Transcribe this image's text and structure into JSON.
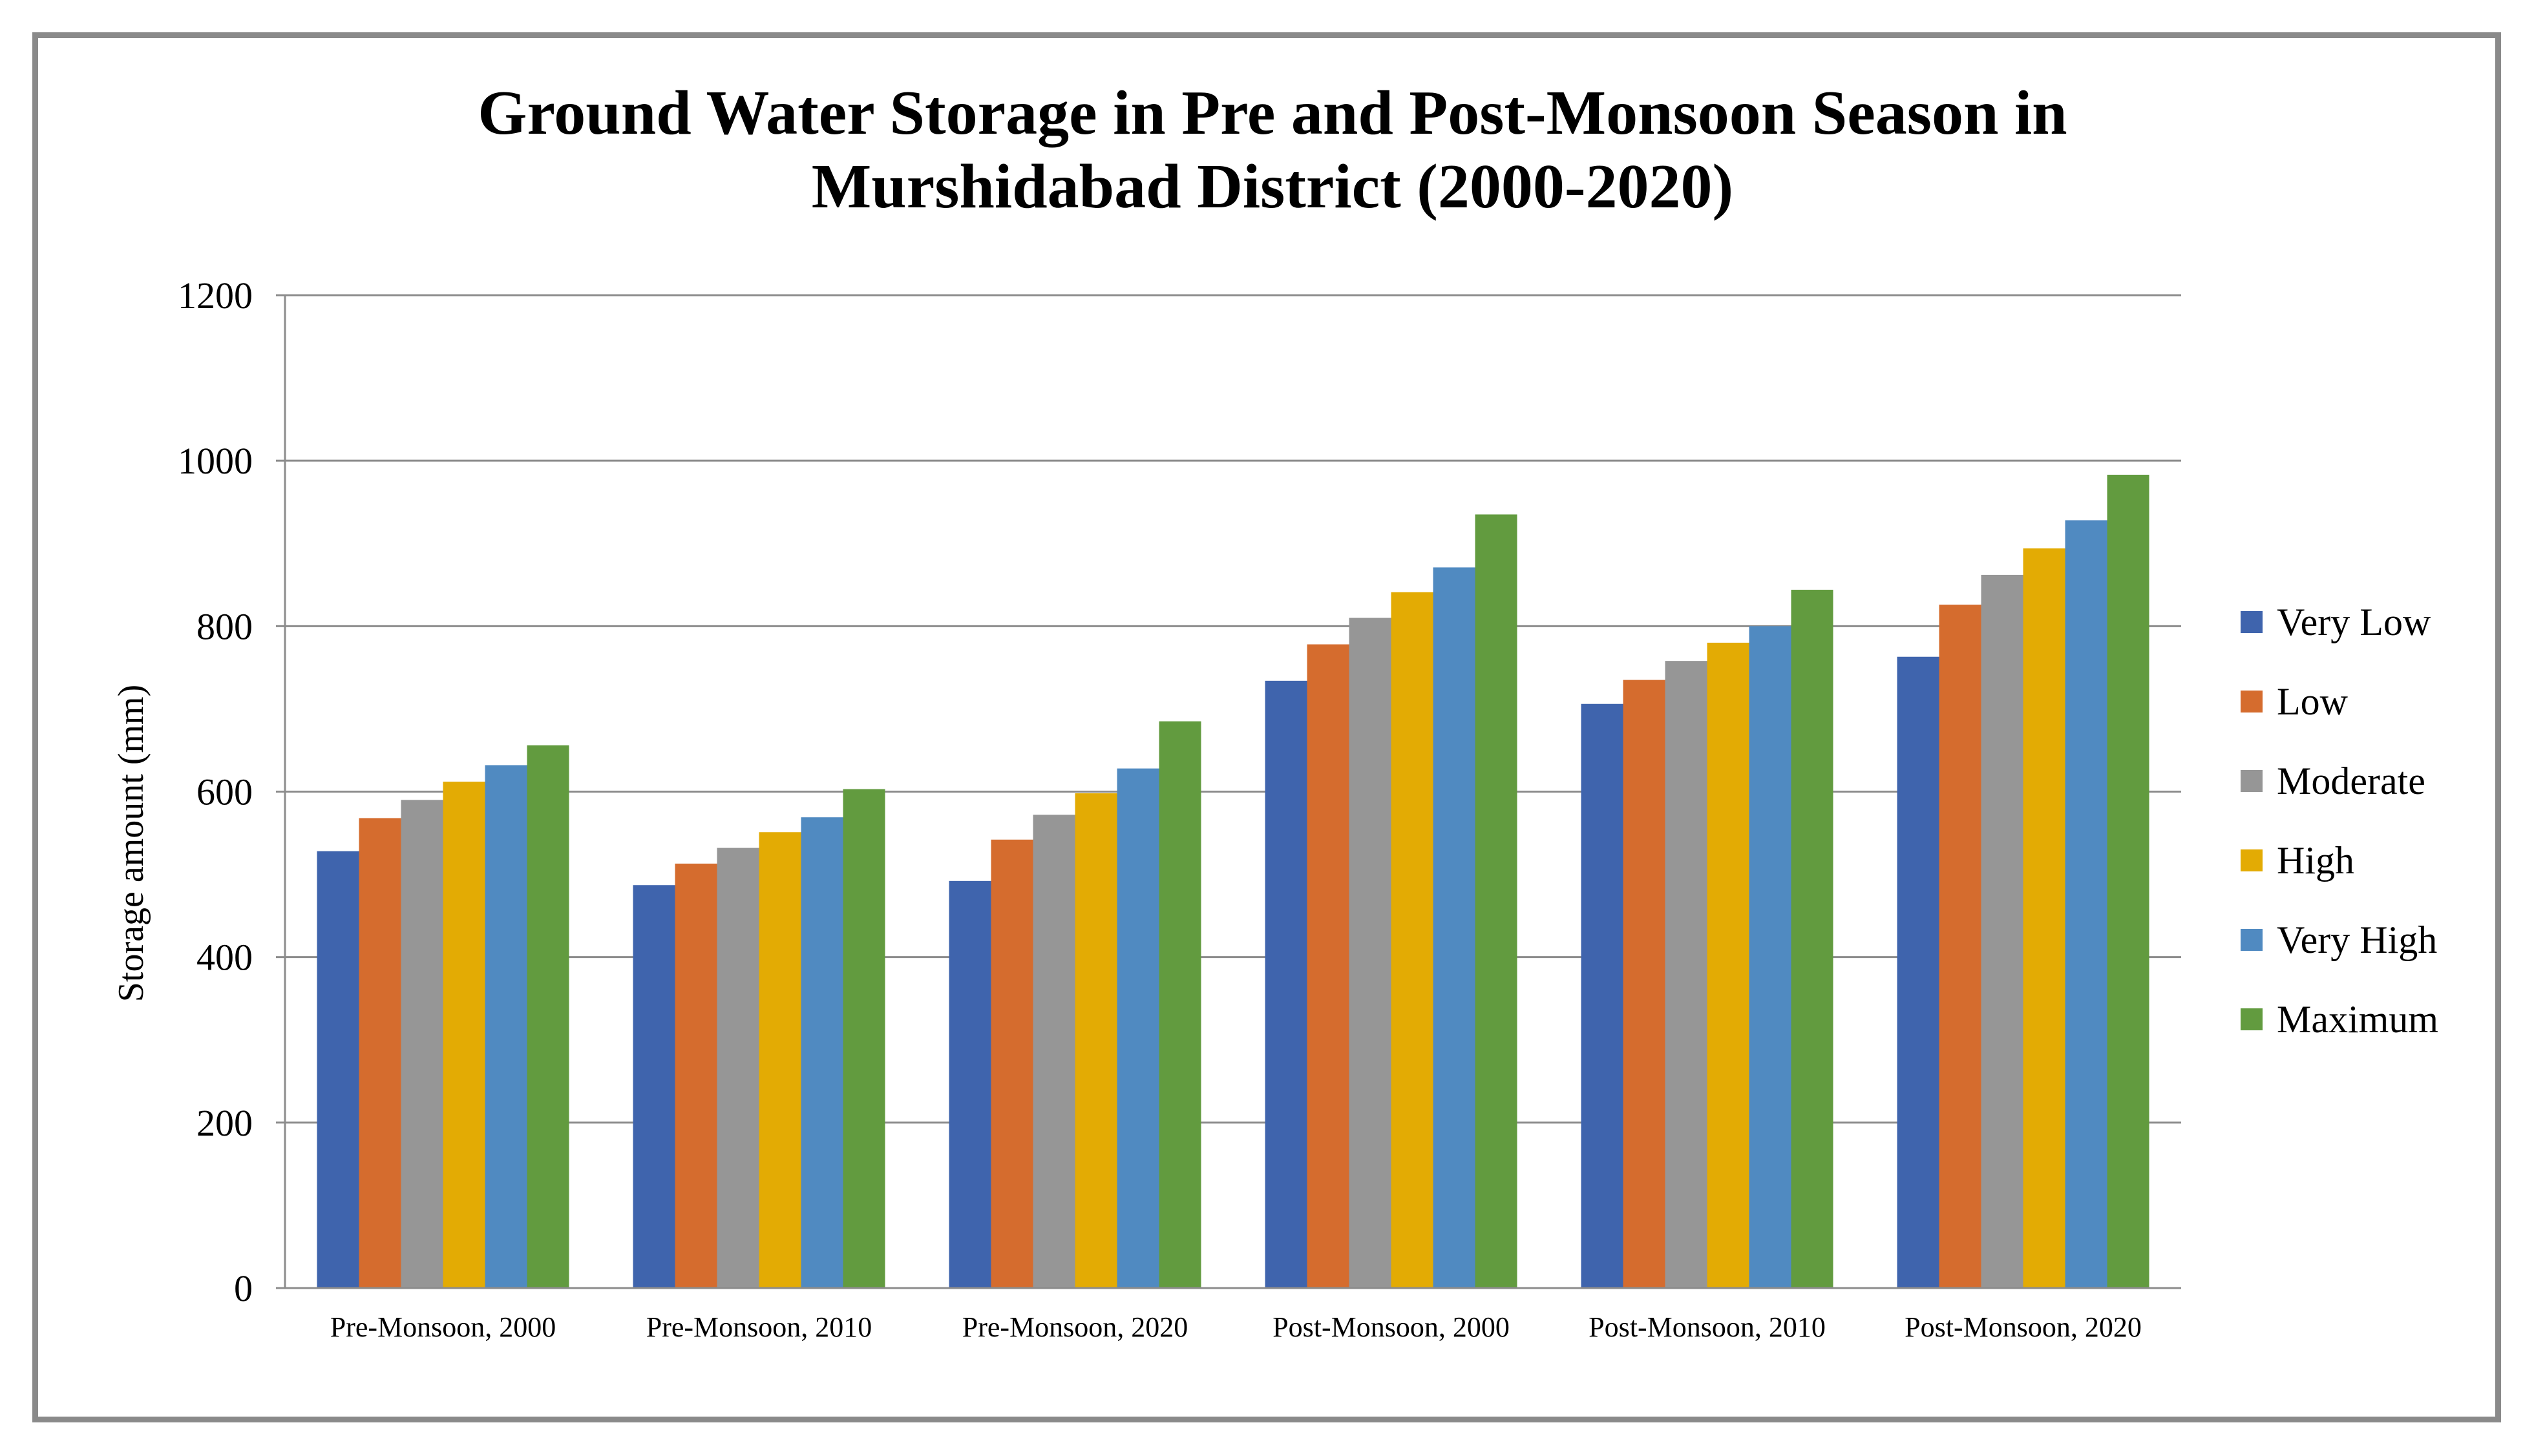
{
  "chart_data": {
    "type": "bar",
    "title_lines": [
      "Ground Water Storage in Pre and Post-Monsoon Season in",
      "Murshidabad District (2000-2020)"
    ],
    "xlabel": "",
    "ylabel": "Storage amount (mm)",
    "ylim": [
      0,
      1200
    ],
    "yticks": [
      "0",
      "200",
      "400",
      "600",
      "800",
      "1000",
      "1200"
    ],
    "grid": true,
    "legend_position": "right",
    "categories": [
      "Pre-Monsoon, 2000",
      "Pre-Monsoon, 2010",
      "Pre-Monsoon, 2020",
      "Post-Monsoon, 2000",
      "Post-Monsoon, 2010",
      "Post-Monsoon, 2020"
    ],
    "series": [
      {
        "name": "Very Low",
        "color": "#3f64ad",
        "values": [
          528,
          487,
          492,
          734,
          706,
          763
        ]
      },
      {
        "name": "Low",
        "color": "#d56c2e",
        "values": [
          568,
          513,
          542,
          778,
          735,
          826
        ]
      },
      {
        "name": "Moderate",
        "color": "#969696",
        "values": [
          590,
          532,
          572,
          810,
          758,
          862
        ]
      },
      {
        "name": "High",
        "color": "#e3ab04",
        "values": [
          612,
          551,
          598,
          841,
          780,
          894
        ]
      },
      {
        "name": "Very High",
        "color": "#508ac1",
        "values": [
          632,
          569,
          628,
          871,
          800,
          928
        ]
      },
      {
        "name": "Maximum",
        "color": "#629b3f",
        "values": [
          656,
          603,
          685,
          935,
          844,
          983
        ]
      }
    ]
  }
}
